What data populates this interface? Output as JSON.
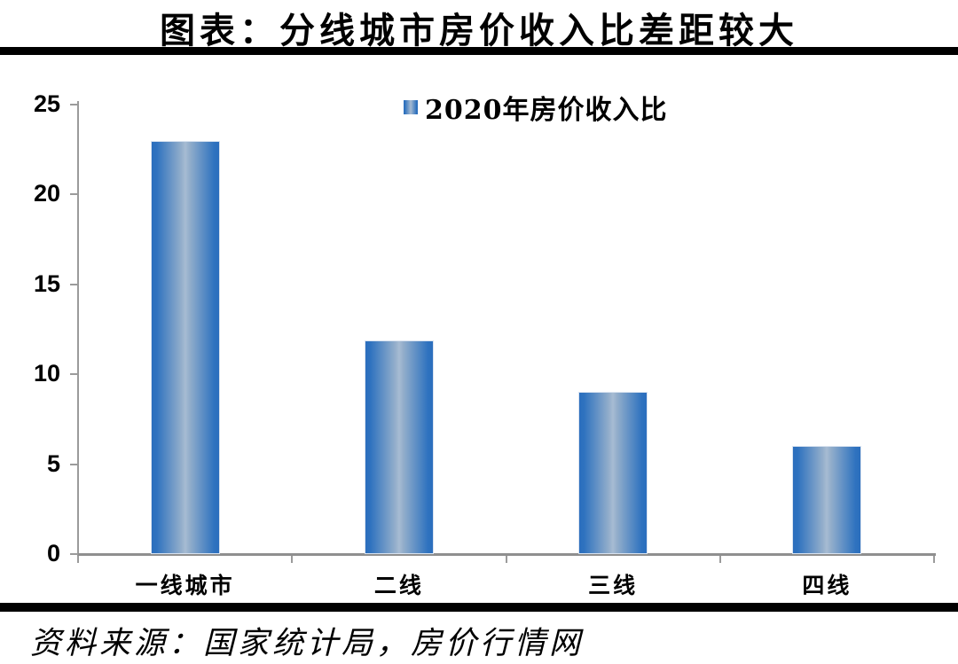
{
  "title": "图表：分线城市房价收入比差距较大",
  "legend": {
    "marker": "blue-gradient-square",
    "label": "2020年房价收入比"
  },
  "source": "资料来源：国家统计局，房价行情网",
  "colors": {
    "bar_edge": "#2d70bd",
    "bar_center": "#a7bcd3",
    "axis": "#9b9b9b",
    "divider_rule": "#000000",
    "text": "#000000"
  },
  "chart_data": {
    "type": "bar",
    "title": "图表：分线城市房价收入比差距较大",
    "series_name": "2020年房价收入比",
    "categories": [
      "一线城市",
      "二线",
      "三线",
      "四线"
    ],
    "values": [
      23.0,
      11.9,
      9.0,
      6.0
    ],
    "xlabel": "",
    "ylabel": "",
    "ylim": [
      0,
      25
    ],
    "yticks": [
      0,
      5,
      10,
      15,
      20,
      25
    ],
    "grid": false,
    "legend_position": "top-center",
    "source_note": "资料来源：国家统计局，房价行情网"
  }
}
